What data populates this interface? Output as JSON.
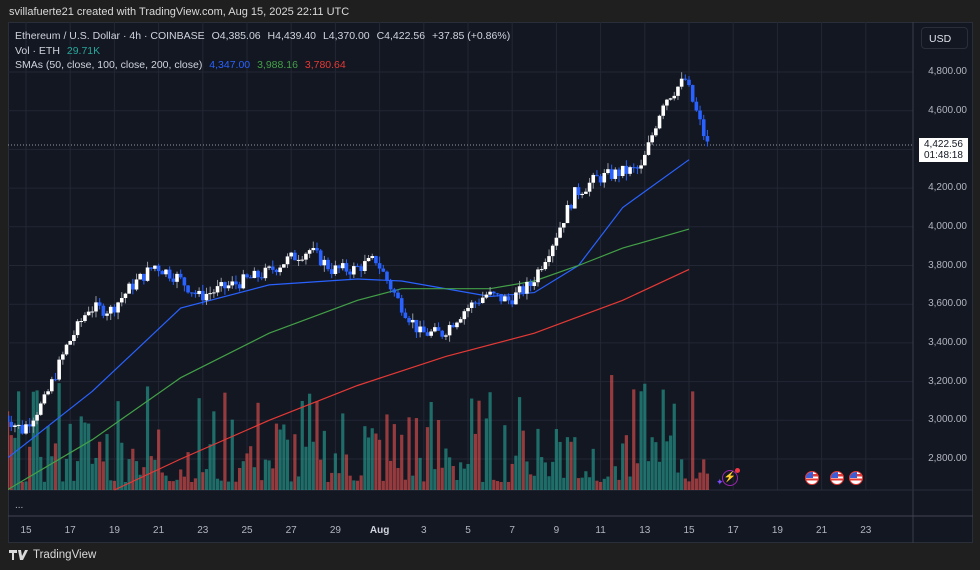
{
  "credit": "svillafuerte21 created with TradingView.com, Aug 15, 2025 22:11 UTC",
  "legend": {
    "symbol": "Ethereum / U.S. Dollar · 4h · COINBASE",
    "open": "O4,385.06",
    "high": "H4,439.40",
    "low": "L4,370.00",
    "close": "C4,422.56",
    "change": "+37.85 (+0.86%)",
    "vol_label": "Vol · ETH",
    "vol_value": "29.71K",
    "sma_label": "SMAs (50, close, 100, close, 200, close)",
    "sma50": "4,347.00",
    "sma100": "3,988.16",
    "sma200": "3,780.64"
  },
  "currency_button": "USD",
  "current_price": {
    "price": "4,422.56",
    "countdown": "01:48:18"
  },
  "more_label": "...",
  "brand": "TradingView",
  "colors": {
    "background": "#131722",
    "up_candle": "#ffffff",
    "down_candle": "#2962ff",
    "vol_up": "#26a69a",
    "vol_down": "#ef5350",
    "sma50": "#2962ff",
    "sma100": "#43a047",
    "sma200": "#e53935"
  },
  "chart_data": {
    "type": "candlestick",
    "title": "Ethereum / U.S. Dollar · 4h · COINBASE",
    "xlabel": "",
    "ylabel": "USD",
    "ylim": [
      2600,
      4900
    ],
    "y_ticks": [
      "4,800.00",
      "4,600.00",
      "4,200.00",
      "4,000.00",
      "3,800.00",
      "3,600.00",
      "3,400.00",
      "3,200.00",
      "3,000.00",
      "2,800.00"
    ],
    "x_ticks": [
      "15",
      "17",
      "19",
      "21",
      "23",
      "25",
      "27",
      "29",
      "Aug",
      "3",
      "5",
      "7",
      "9",
      "11",
      "13",
      "15",
      "17",
      "19",
      "21",
      "23"
    ],
    "grid": true,
    "price_path": [
      {
        "date": "Jul 14",
        "price": 3040
      },
      {
        "date": "Jul 15",
        "price": 2950
      },
      {
        "date": "Jul 16",
        "price": 3100
      },
      {
        "date": "Jul 17",
        "price": 3380
      },
      {
        "date": "Jul 18",
        "price": 3580
      },
      {
        "date": "Jul 19",
        "price": 3570
      },
      {
        "date": "Jul 20",
        "price": 3700
      },
      {
        "date": "Jul 21",
        "price": 3800
      },
      {
        "date": "Jul 22",
        "price": 3740
      },
      {
        "date": "Jul 23",
        "price": 3640
      },
      {
        "date": "Jul 24",
        "price": 3680
      },
      {
        "date": "Jul 25",
        "price": 3720
      },
      {
        "date": "Jul 26",
        "price": 3760
      },
      {
        "date": "Jul 27",
        "price": 3830
      },
      {
        "date": "Jul 28",
        "price": 3880
      },
      {
        "date": "Jul 29",
        "price": 3780
      },
      {
        "date": "Jul 30",
        "price": 3780
      },
      {
        "date": "Jul 31",
        "price": 3830
      },
      {
        "date": "Aug 1",
        "price": 3620
      },
      {
        "date": "Aug 2",
        "price": 3450
      },
      {
        "date": "Aug 3",
        "price": 3450
      },
      {
        "date": "Aug 4",
        "price": 3570
      },
      {
        "date": "Aug 5",
        "price": 3650
      },
      {
        "date": "Aug 6",
        "price": 3620
      },
      {
        "date": "Aug 7",
        "price": 3700
      },
      {
        "date": "Aug 8",
        "price": 3920
      },
      {
        "date": "Aug 9",
        "price": 4170
      },
      {
        "date": "Aug 10",
        "price": 4250
      },
      {
        "date": "Aug 11",
        "price": 4280
      },
      {
        "date": "Aug 12",
        "price": 4300
      },
      {
        "date": "Aug 13",
        "price": 4650
      },
      {
        "date": "Aug 14",
        "price": 4760
      },
      {
        "date": "Aug 15",
        "price": 4423
      }
    ],
    "series": [
      {
        "name": "SMA 50",
        "color": "#2962ff",
        "last": 4347.0,
        "points": [
          [
            0,
            2790
          ],
          [
            4,
            3150
          ],
          [
            8,
            3580
          ],
          [
            12,
            3700
          ],
          [
            16,
            3730
          ],
          [
            18,
            3720
          ],
          [
            22,
            3640
          ],
          [
            24,
            3660
          ],
          [
            26,
            3800
          ],
          [
            28,
            4100
          ],
          [
            31,
            4347
          ]
        ]
      },
      {
        "name": "SMA 100",
        "color": "#43a047",
        "last": 3988.16,
        "points": [
          [
            0,
            2630
          ],
          [
            4,
            2900
          ],
          [
            8,
            3220
          ],
          [
            12,
            3450
          ],
          [
            16,
            3620
          ],
          [
            18,
            3680
          ],
          [
            22,
            3680
          ],
          [
            24,
            3720
          ],
          [
            26,
            3800
          ],
          [
            28,
            3890
          ],
          [
            31,
            3988
          ]
        ]
      },
      {
        "name": "SMA 200",
        "color": "#e53935",
        "last": 3780.64,
        "points": [
          [
            5,
            2640
          ],
          [
            8,
            2800
          ],
          [
            12,
            3000
          ],
          [
            16,
            3180
          ],
          [
            20,
            3330
          ],
          [
            24,
            3450
          ],
          [
            28,
            3620
          ],
          [
            31,
            3780
          ]
        ]
      }
    ],
    "volume": {
      "label": "Vol · ETH",
      "last": "29.71K"
    },
    "events": [
      {
        "type": "earnings-bolt",
        "date": "Aug 15"
      },
      {
        "type": "us-economic-event",
        "date": "Aug 19"
      },
      {
        "type": "us-economic-event",
        "date": "Aug 20"
      },
      {
        "type": "us-economic-event",
        "date": "Aug 21"
      }
    ]
  }
}
